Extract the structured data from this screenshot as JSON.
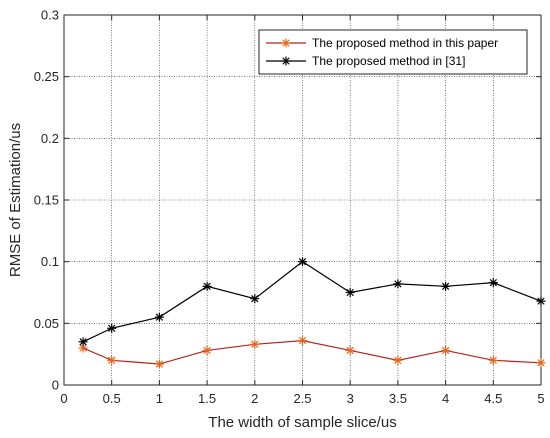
{
  "chart_data": {
    "type": "line",
    "xlabel": "The width of sample slice/us",
    "ylabel": "RMSE of Estimation/us",
    "xlim": [
      0,
      5
    ],
    "ylim": [
      0,
      0.3
    ],
    "xticks": [
      "0",
      "0.5",
      "1",
      "1.5",
      "2",
      "2.5",
      "3",
      "3.5",
      "4",
      "4.5",
      "5"
    ],
    "yticks": [
      "0",
      "0.05",
      "0.1",
      "0.15",
      "0.2",
      "0.25",
      "0.3"
    ],
    "grid": true,
    "legend_position": "top-right",
    "x": [
      0.2,
      0.5,
      1,
      1.5,
      2,
      2.5,
      3,
      3.5,
      4,
      4.5,
      5
    ],
    "series": [
      {
        "name": "The proposed method in this paper",
        "color": "#b5241c",
        "marker_color": "#e8651c",
        "values": [
          0.03,
          0.02,
          0.017,
          0.028,
          0.033,
          0.036,
          0.028,
          0.02,
          0.028,
          0.02,
          0.018
        ]
      },
      {
        "name": "The proposed method in [31]",
        "color": "#000000",
        "marker_color": "#000000",
        "values": [
          0.035,
          0.046,
          0.055,
          0.08,
          0.07,
          0.1,
          0.075,
          0.082,
          0.08,
          0.083,
          0.068
        ]
      }
    ]
  }
}
